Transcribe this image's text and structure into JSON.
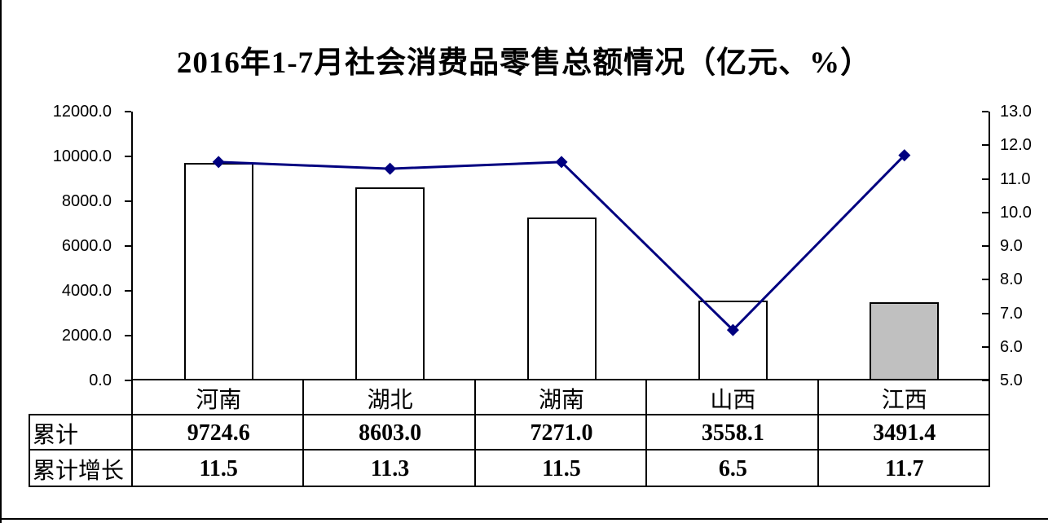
{
  "page": {
    "title": "2016年1-7月社会消费品零售总额情况（亿元、%）"
  },
  "chart_data": {
    "type": "bar",
    "subtype": "combo bar + line, dual axis",
    "title": "2016年1-7月社会消费品零售总额情况（亿元、%）",
    "categories": [
      "河南",
      "湖北",
      "湖南",
      "山西",
      "江西"
    ],
    "series": [
      {
        "name": "累计",
        "type": "bar",
        "axis": "left",
        "values": [
          9724.6,
          8603.0,
          7271.0,
          3558.1,
          3491.4
        ]
      },
      {
        "name": "累计增长",
        "type": "line",
        "axis": "right",
        "values": [
          11.5,
          11.3,
          11.5,
          6.5,
          11.7
        ]
      }
    ],
    "left_axis": {
      "min": 0,
      "max": 12000,
      "step": 2000,
      "tick_labels": [
        "0.0",
        "2000.0",
        "4000.0",
        "6000.0",
        "8000.0",
        "10000.0",
        "12000.0"
      ]
    },
    "right_axis": {
      "min": 5,
      "max": 13,
      "step": 1,
      "tick_labels": [
        "5.0",
        "6.0",
        "7.0",
        "8.0",
        "9.0",
        "10.0",
        "11.0",
        "12.0",
        "13.0"
      ]
    },
    "grid": false,
    "legend_position": "none",
    "colors": {
      "bar_fill": "#FFFFFF",
      "bar_fill_jiangxi": "#C0C0C0",
      "bar_border": "#000000",
      "line": "#000080",
      "text": "#000000"
    }
  },
  "table": {
    "rows": [
      {
        "label": "累计",
        "values": [
          "9724.6",
          "8603.0",
          "7271.0",
          "3558.1",
          "3491.4"
        ]
      },
      {
        "label": "累计增长",
        "values": [
          "11.5",
          "11.3",
          "11.5",
          "6.5",
          "11.7"
        ]
      }
    ]
  }
}
